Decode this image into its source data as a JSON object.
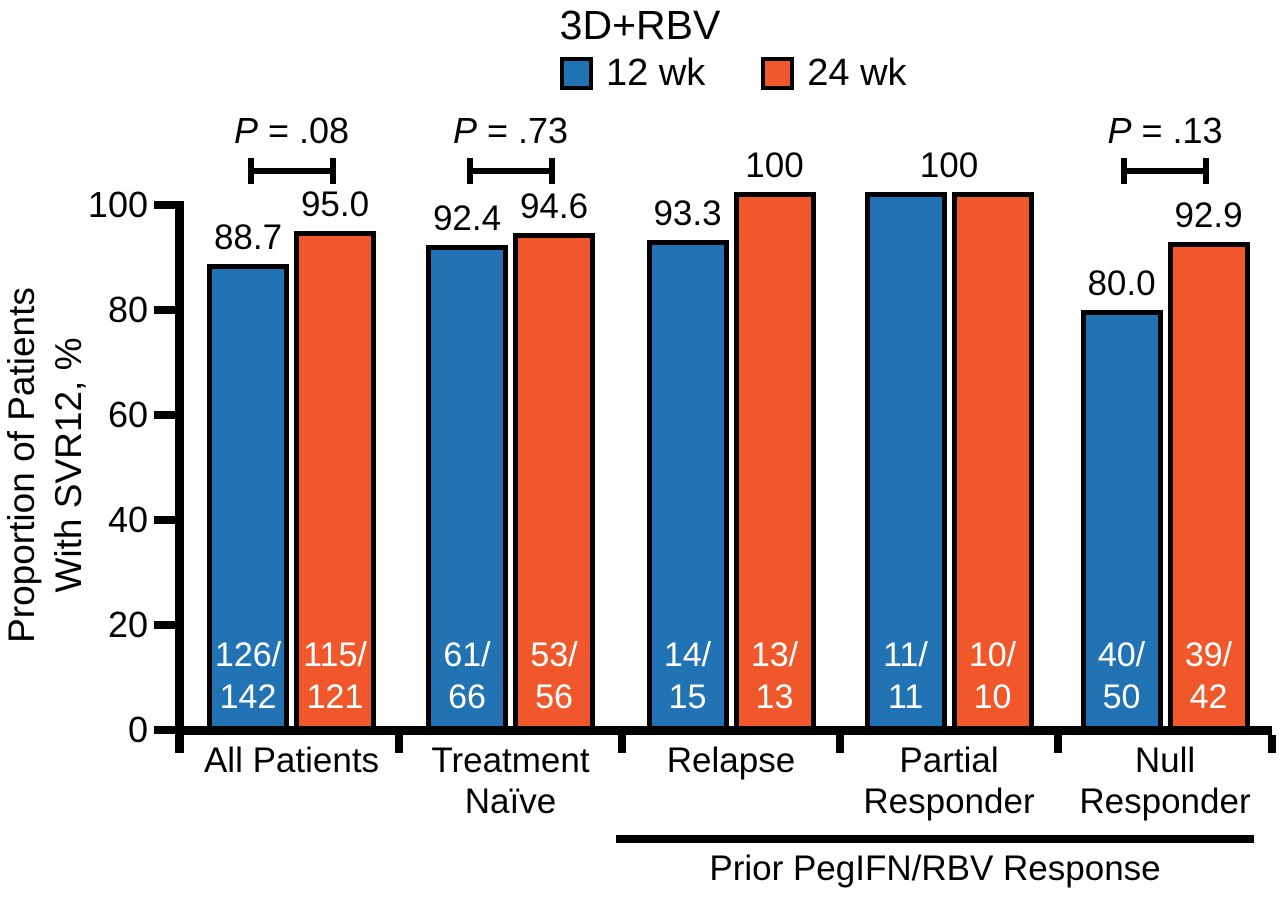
{
  "chart_data": {
    "type": "bar",
    "title": "3D+RBV",
    "ylabel": "Proportion of Patients With SVR12, %",
    "ylabel_lines": [
      "Proportion of Patients",
      "With SVR12, %"
    ],
    "ylim": [
      0,
      100
    ],
    "yticks": [
      0,
      20,
      40,
      60,
      80,
      100
    ],
    "legend_position": "top",
    "legend": [
      {
        "label": "12 wk",
        "color": "#2173b4"
      },
      {
        "label": "24 wk",
        "color": "#f0582b"
      }
    ],
    "colors": {
      "series_12wk": "#2173b4",
      "series_24wk": "#f0582b",
      "axis": "#000000",
      "bar_outline": "#000000",
      "in_bar_text": "#ffffff"
    },
    "categories": [
      "All Patients",
      "Treatment Naïve",
      "Relapse",
      "Partial Responder",
      "Null Responder"
    ],
    "series": [
      {
        "name": "12 wk",
        "values": [
          88.7,
          92.4,
          93.3,
          100,
          80.0
        ]
      },
      {
        "name": "24 wk",
        "values": [
          95.0,
          94.6,
          100,
          100,
          92.9
        ]
      }
    ],
    "groups": [
      {
        "category_lines": [
          "All Patients"
        ],
        "p_label": "P = .08",
        "bars": [
          {
            "series": "12 wk",
            "value": 88.7,
            "value_label": "88.7",
            "fraction_lines": [
              "126/",
              "142"
            ]
          },
          {
            "series": "24 wk",
            "value": 95.0,
            "value_label": "95.0",
            "fraction_lines": [
              "115/",
              "121"
            ]
          }
        ]
      },
      {
        "category_lines": [
          "Treatment",
          "Naïve"
        ],
        "p_label": "P = .73",
        "bars": [
          {
            "series": "12 wk",
            "value": 92.4,
            "value_label": "92.4",
            "fraction_lines": [
              "61/",
              "66"
            ]
          },
          {
            "series": "24 wk",
            "value": 94.6,
            "value_label": "94.6",
            "fraction_lines": [
              "53/",
              "56"
            ]
          }
        ]
      },
      {
        "category_lines": [
          "Relapse"
        ],
        "p_label": null,
        "bars": [
          {
            "series": "12 wk",
            "value": 93.3,
            "value_label": "93.3",
            "fraction_lines": [
              "14/",
              "15"
            ]
          },
          {
            "series": "24 wk",
            "value": 100,
            "value_label": "100",
            "fraction_lines": [
              "13/",
              "13"
            ]
          }
        ]
      },
      {
        "category_lines": [
          "Partial",
          "Responder"
        ],
        "p_label": null,
        "shared_value_label": "100",
        "bars": [
          {
            "series": "12 wk",
            "value": 100,
            "value_label": null,
            "fraction_lines": [
              "11/",
              "11"
            ]
          },
          {
            "series": "24 wk",
            "value": 100,
            "value_label": null,
            "fraction_lines": [
              "10/",
              "10"
            ]
          }
        ]
      },
      {
        "category_lines": [
          "Null",
          "Responder"
        ],
        "p_label": "P = .13",
        "bars": [
          {
            "series": "12 wk",
            "value": 80.0,
            "value_label": "80.0",
            "fraction_lines": [
              "40/",
              "50"
            ]
          },
          {
            "series": "24 wk",
            "value": 92.9,
            "value_label": "92.9",
            "fraction_lines": [
              "39/",
              "42"
            ]
          }
        ]
      }
    ],
    "bottom_bracket": {
      "label": "Prior PegIFN/RBV Response",
      "covers_categories": [
        "Relapse",
        "Partial Responder",
        "Null Responder"
      ]
    }
  }
}
